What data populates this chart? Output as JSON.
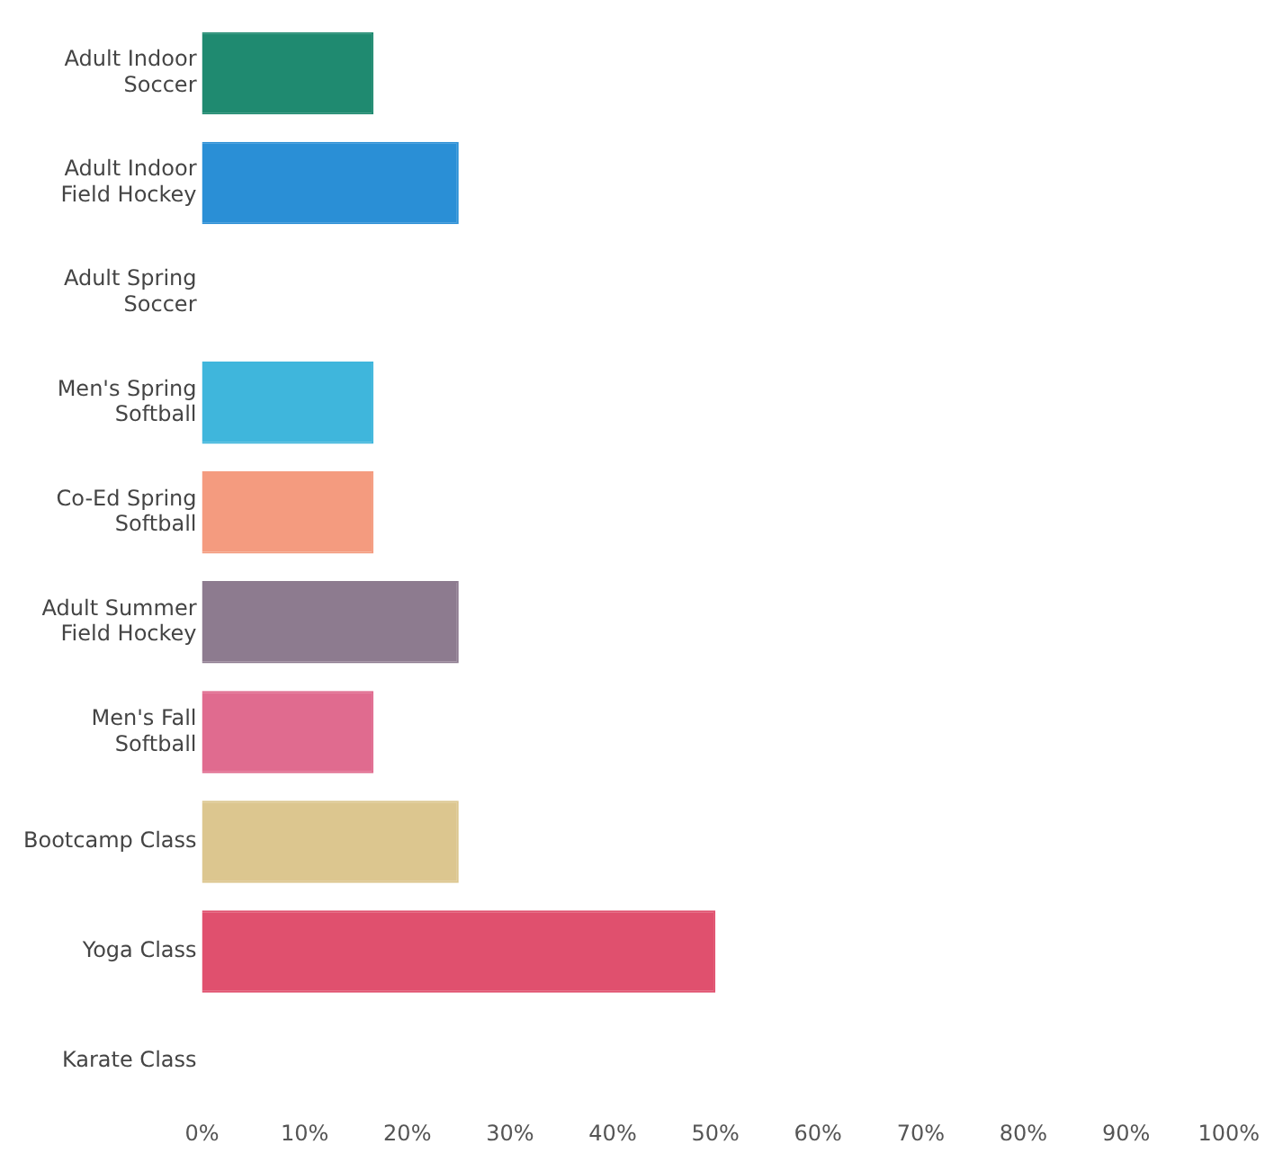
{
  "chart_data": {
    "type": "bar",
    "orientation": "horizontal",
    "categories": [
      "Adult Indoor Soccer",
      "Adult Indoor Field Hockey",
      "Adult Spring Soccer",
      "Men's Spring Softball",
      "Co-Ed Spring Softball",
      "Adult Summer Field Hockey",
      "Men's Fall Softball",
      "Bootcamp Class",
      "Yoga Class",
      "Karate Class"
    ],
    "values": [
      16.7,
      25,
      0,
      16.7,
      16.7,
      25,
      16.7,
      25,
      50,
      0
    ],
    "colors": [
      "#1f8a70",
      "#2a8fd6",
      "#5b9bd5",
      "#3fb6dc",
      "#f49b7f",
      "#8d7b8f",
      "#e06b8f",
      "#dcc68f",
      "#e0506e",
      "#999999"
    ],
    "xlim": [
      0,
      100
    ],
    "xticks": [
      {
        "value": 0,
        "label": "0%"
      },
      {
        "value": 10,
        "label": "10%"
      },
      {
        "value": 20,
        "label": "20%"
      },
      {
        "value": 30,
        "label": "30%"
      },
      {
        "value": 40,
        "label": "40%"
      },
      {
        "value": 50,
        "label": "50%"
      },
      {
        "value": 60,
        "label": "60%"
      },
      {
        "value": 70,
        "label": "70%"
      },
      {
        "value": 80,
        "label": "80%"
      },
      {
        "value": 90,
        "label": "90%"
      },
      {
        "value": 100,
        "label": "100%"
      }
    ],
    "grid": false,
    "legend": false
  }
}
